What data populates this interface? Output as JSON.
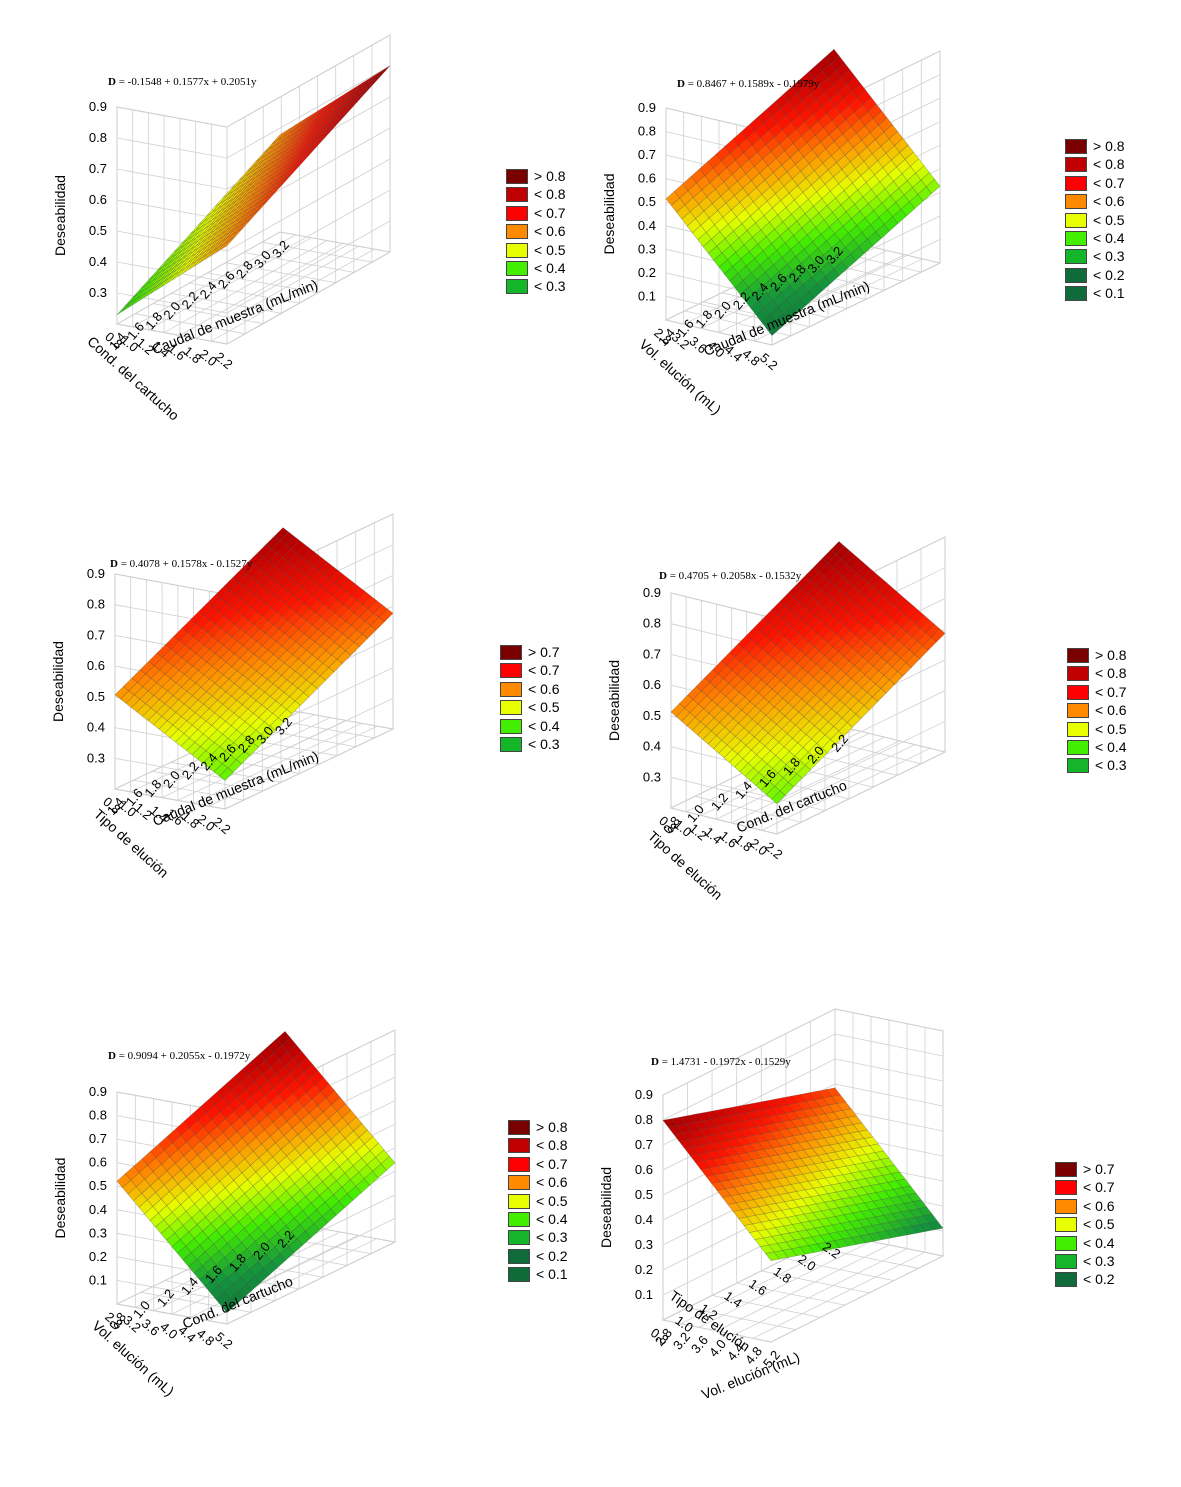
{
  "figure": {
    "panels": [
      {
        "equation_prefix": "D",
        "equation_rest": " = -0.1548 + 0.1577x + 0.2051y",
        "zlabel": "Deseabilidad",
        "xlabel": "Caudal de muestra (mL/min)",
        "ylabel": "Cond. del cartucho",
        "legend": [
          "> 0.8",
          "< 0.8",
          "< 0.7",
          "< 0.6",
          "< 0.5",
          "< 0.4",
          "< 0.3"
        ]
      },
      {
        "equation_prefix": "D",
        "equation_rest": " = 0.8467 + 0.1589x - 0.1979y",
        "zlabel": "Deseabilidad",
        "xlabel": "Caudal de muestra (mL/min)",
        "ylabel": "Vol. elución (mL)",
        "legend": [
          "> 0.8",
          "< 0.8",
          "< 0.7",
          "< 0.6",
          "< 0.5",
          "< 0.4",
          "< 0.3",
          "< 0.2",
          "< 0.1"
        ]
      },
      {
        "equation_prefix": "D",
        "equation_rest": " = 0.4078 + 0.1578x - 0.1527y",
        "zlabel": "Deseabilidad",
        "xlabel": "Caudal de muestra (mL/min)",
        "ylabel": "Tipo de elución",
        "legend": [
          "> 0.7",
          "< 0.7",
          "< 0.6",
          "< 0.5",
          "< 0.4",
          "< 0.3"
        ]
      },
      {
        "equation_prefix": "D",
        "equation_rest": " = 0.4705 + 0.2058x - 0.1532y",
        "zlabel": "Deseabilidad",
        "xlabel": "Cond. del cartucho",
        "ylabel": "Tipo de elución",
        "legend": [
          "> 0.8",
          "< 0.8",
          "< 0.7",
          "< 0.6",
          "< 0.5",
          "< 0.4",
          "< 0.3"
        ]
      },
      {
        "equation_prefix": "D",
        "equation_rest": " = 0.9094 + 0.2055x - 0.1972y",
        "zlabel": "Deseabilidad",
        "xlabel": "Cond. del cartucho",
        "ylabel": "Vol. elución (mL)",
        "legend": [
          "> 0.8",
          "< 0.8",
          "< 0.7",
          "< 0.6",
          "< 0.5",
          "< 0.4",
          "< 0.3",
          "< 0.2",
          "< 0.1"
        ]
      },
      {
        "equation_prefix": "D",
        "equation_rest": " = 1.4731 - 0.1972x - 0.1529y",
        "zlabel": "Deseabilidad",
        "xlabel": "Vol. elución (mL)",
        "ylabel": "Tipo de elución",
        "legend": [
          "> 0.7",
          "< 0.7",
          "< 0.6",
          "< 0.5",
          "< 0.4",
          "< 0.3",
          "< 0.2"
        ]
      }
    ]
  },
  "colors": {
    "dark_red": "#7a0000",
    "red": "#c00000",
    "bright_red": "#ff0000",
    "orange": "#ff8a00",
    "yellow": "#e8ff00",
    "light_green": "#44ee00",
    "green": "#15b52a",
    "dark_green": "#0f6b3a",
    "grid": "#d0d0d0",
    "mesh": "#7a7a7a"
  },
  "chart_data": [
    {
      "type": "surface",
      "title": "D = -0.1548 + 0.1577x + 0.2051y",
      "zlabel": "Deseabilidad",
      "xlabel": "Caudal de muestra (mL/min)",
      "ylabel": "Cond. del cartucho",
      "xticks": [
        1.4,
        1.6,
        1.8,
        2.0,
        2.2,
        2.4,
        2.6,
        2.8,
        3.0,
        3.2
      ],
      "yticks": [
        0.8,
        1.0,
        1.2,
        1.4,
        1.6,
        1.8,
        2.0,
        2.2
      ],
      "zticks": [
        0.3,
        0.4,
        0.5,
        0.6,
        0.7,
        0.8,
        0.9
      ],
      "xlim": [
        1.4,
        3.2
      ],
      "ylim": [
        0.8,
        2.2
      ],
      "zlim": [
        0.2,
        0.9
      ],
      "equation": {
        "c": -0.1548,
        "a": 0.1577,
        "b": 0.2051
      },
      "legend": [
        "> 0.8",
        "< 0.8",
        "< 0.7",
        "< 0.6",
        "< 0.5",
        "< 0.4",
        "< 0.3"
      ]
    },
    {
      "type": "surface",
      "title": "D = 0.8467 + 0.1589x - 0.1979y",
      "zlabel": "Deseabilidad",
      "xlabel": "Caudal de muestra (mL/min)",
      "ylabel": "Vol. elución (mL)",
      "xticks": [
        1.4,
        1.6,
        1.8,
        2.0,
        2.2,
        2.4,
        2.6,
        2.8,
        3.0,
        3.2
      ],
      "yticks": [
        2.8,
        3.2,
        3.6,
        4.0,
        4.4,
        4.8,
        5.2
      ],
      "zticks": [
        0.1,
        0.2,
        0.3,
        0.4,
        0.5,
        0.6,
        0.7,
        0.8,
        0.9
      ],
      "xlim": [
        1.4,
        3.2
      ],
      "ylim": [
        2.8,
        5.2
      ],
      "zlim": [
        0.0,
        0.9
      ],
      "equation": {
        "c": 0.8467,
        "a": 0.1589,
        "b": -0.1979
      },
      "legend": [
        "> 0.8",
        "< 0.8",
        "< 0.7",
        "< 0.6",
        "< 0.5",
        "< 0.4",
        "< 0.3",
        "< 0.2",
        "< 0.1"
      ]
    },
    {
      "type": "surface",
      "title": "D = 0.4078 + 0.1578x - 0.1527y",
      "zlabel": "Deseabilidad",
      "xlabel": "Caudal de muestra (mL/min)",
      "ylabel": "Tipo de elución",
      "xticks": [
        1.4,
        1.6,
        1.8,
        2.0,
        2.2,
        2.4,
        2.6,
        2.8,
        3.0,
        3.2
      ],
      "yticks": [
        0.8,
        1.0,
        1.2,
        1.4,
        1.6,
        1.8,
        2.0,
        2.2
      ],
      "zticks": [
        0.3,
        0.4,
        0.5,
        0.6,
        0.7,
        0.8,
        0.9
      ],
      "xlim": [
        1.4,
        3.2
      ],
      "ylim": [
        0.8,
        2.2
      ],
      "zlim": [
        0.2,
        0.9
      ],
      "equation": {
        "c": 0.4078,
        "a": 0.1578,
        "b": -0.1527
      },
      "legend": [
        "> 0.7",
        "< 0.7",
        "< 0.6",
        "< 0.5",
        "< 0.4",
        "< 0.3"
      ]
    },
    {
      "type": "surface",
      "title": "D = 0.4705 + 0.2058x - 0.1532y",
      "zlabel": "Deseabilidad",
      "xlabel": "Cond. del cartucho",
      "ylabel": "Tipo de elución",
      "xticks": [
        0.8,
        1.0,
        1.2,
        1.4,
        1.6,
        1.8,
        2.0,
        2.2
      ],
      "yticks": [
        0.8,
        1.0,
        1.2,
        1.4,
        1.6,
        1.8,
        2.0,
        2.2
      ],
      "zticks": [
        0.3,
        0.4,
        0.5,
        0.6,
        0.7,
        0.8,
        0.9
      ],
      "xlim": [
        0.8,
        2.2
      ],
      "ylim": [
        0.8,
        2.2
      ],
      "zlim": [
        0.2,
        0.9
      ],
      "equation": {
        "c": 0.4705,
        "a": 0.2058,
        "b": -0.1532
      },
      "legend": [
        "> 0.8",
        "< 0.8",
        "< 0.7",
        "< 0.6",
        "< 0.5",
        "< 0.4",
        "< 0.3"
      ]
    },
    {
      "type": "surface",
      "title": "D = 0.9094 + 0.2055x - 0.1972y",
      "zlabel": "Deseabilidad",
      "xlabel": "Cond. del cartucho",
      "ylabel": "Vol. elución (mL)",
      "xticks": [
        0.8,
        1.0,
        1.2,
        1.4,
        1.6,
        1.8,
        2.0,
        2.2
      ],
      "yticks": [
        2.8,
        3.2,
        3.6,
        4.0,
        4.4,
        4.8,
        5.2
      ],
      "zticks": [
        0.1,
        0.2,
        0.3,
        0.4,
        0.5,
        0.6,
        0.7,
        0.8,
        0.9
      ],
      "xlim": [
        0.8,
        2.2
      ],
      "ylim": [
        2.8,
        5.2
      ],
      "zlim": [
        0.0,
        0.9
      ],
      "equation": {
        "c": 0.9094,
        "a": 0.2055,
        "b": -0.1972
      },
      "legend": [
        "> 0.8",
        "< 0.8",
        "< 0.7",
        "< 0.6",
        "< 0.5",
        "< 0.4",
        "< 0.3",
        "< 0.2",
        "< 0.1"
      ]
    },
    {
      "type": "surface",
      "title": "D = 1.4731 - 0.1972x - 0.1529y",
      "zlabel": "Deseabilidad",
      "xlabel": "Vol. elución (mL)",
      "ylabel": "Tipo de elución",
      "xticks": [
        2.8,
        3.2,
        3.6,
        4.0,
        4.4,
        4.8,
        5.2
      ],
      "yticks": [
        0.8,
        1.0,
        1.2,
        1.4,
        1.6,
        1.8,
        2.0,
        2.2
      ],
      "zticks": [
        0.1,
        0.2,
        0.3,
        0.4,
        0.5,
        0.6,
        0.7,
        0.8,
        0.9
      ],
      "xlim": [
        2.8,
        5.2
      ],
      "ylim": [
        0.8,
        2.2
      ],
      "zlim": [
        0.0,
        0.9
      ],
      "equation": {
        "c": 1.4731,
        "a": -0.1972,
        "b": -0.1529
      },
      "legend": [
        "> 0.7",
        "< 0.7",
        "< 0.6",
        "< 0.5",
        "< 0.4",
        "< 0.3",
        "< 0.2"
      ]
    }
  ]
}
